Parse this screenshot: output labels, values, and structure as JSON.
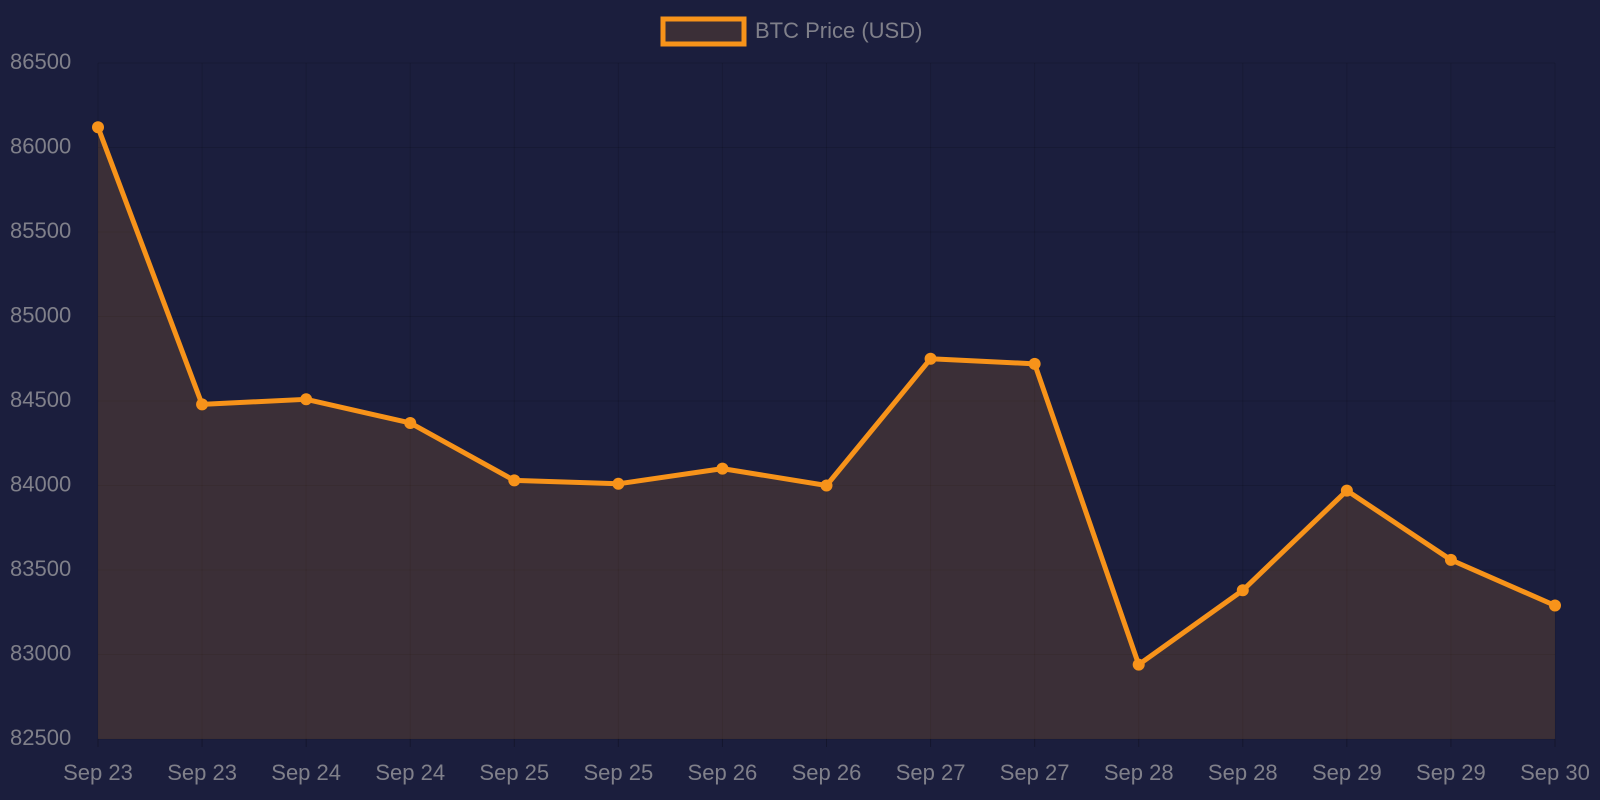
{
  "chart_data": {
    "type": "line",
    "categories": [
      "Sep 23",
      "Sep 23",
      "Sep 24",
      "Sep 24",
      "Sep 25",
      "Sep 25",
      "Sep 26",
      "Sep 26",
      "Sep 27",
      "Sep 27",
      "Sep 28",
      "Sep 28",
      "Sep 29",
      "Sep 29",
      "Sep 30"
    ],
    "series": [
      {
        "name": "BTC Price (USD)",
        "color": "#f7931a",
        "fill": true,
        "values": [
          86120,
          84480,
          84510,
          84370,
          84030,
          84010,
          84100,
          84000,
          84750,
          84720,
          82940,
          83380,
          83970,
          83560,
          83290
        ]
      }
    ],
    "ylim": [
      82500,
      86500
    ],
    "yticks": [
      82500,
      83000,
      83500,
      84000,
      84500,
      85000,
      85500,
      86000,
      86500
    ],
    "grid": true,
    "legend": "top"
  }
}
